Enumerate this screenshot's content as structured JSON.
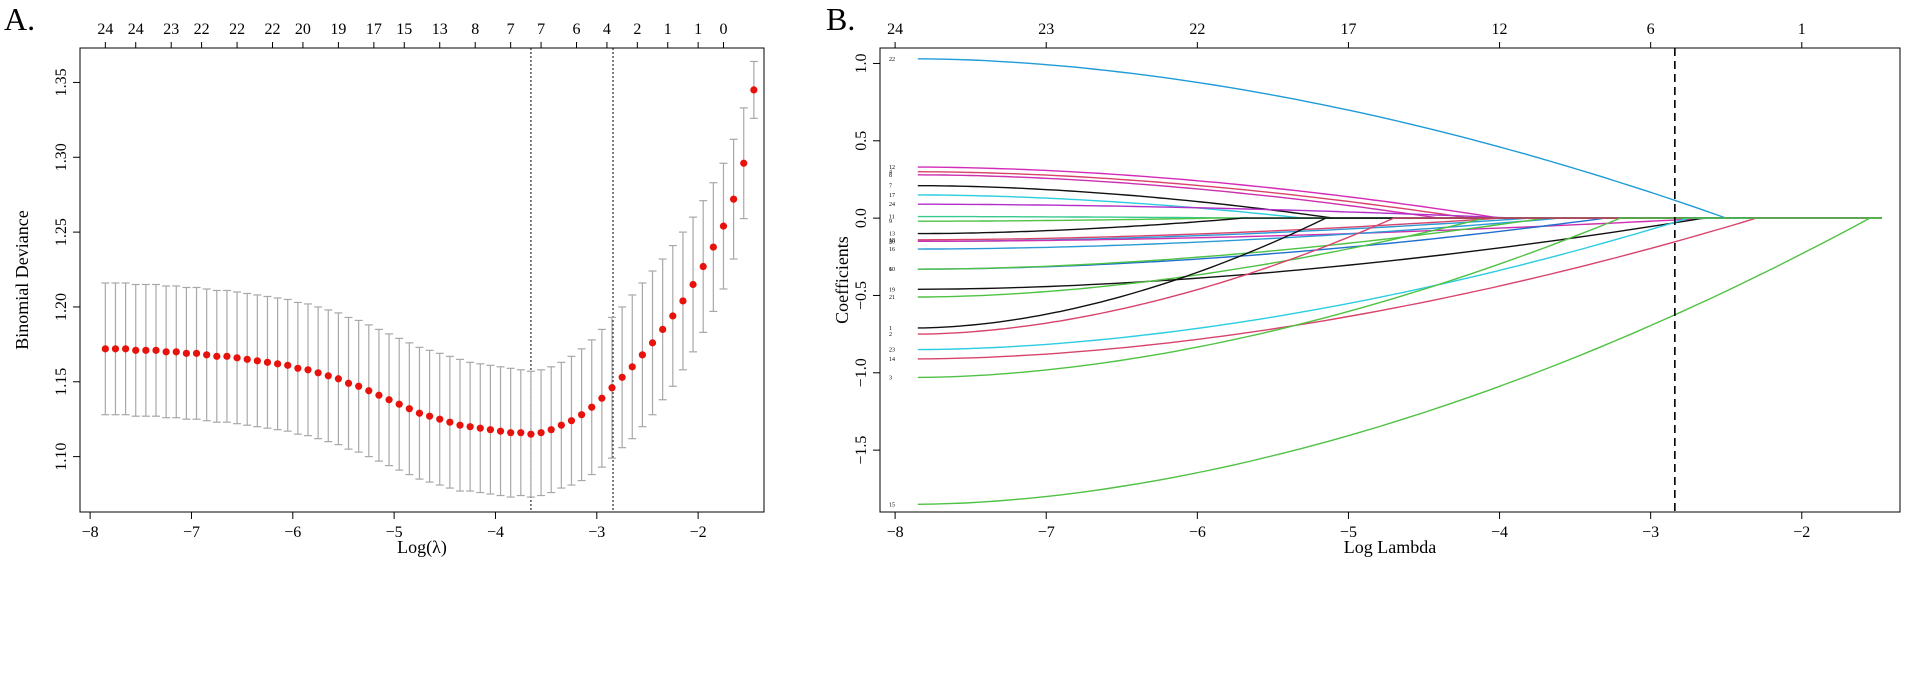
{
  "panels": {
    "a_label": "A.",
    "b_label": "B."
  },
  "chart_data": [
    {
      "type": "scatter",
      "subtype": "cross-validation curve with error bars",
      "xlabel": "Log(λ)",
      "ylabel": "Binomial Deviance",
      "xlim": [
        -8.1,
        -1.35
      ],
      "ylim": [
        1.063,
        1.373
      ],
      "x_ticks": [
        -8,
        -7,
        -6,
        -5,
        -4,
        -3,
        -2
      ],
      "x_tick_labels": [
        "−8",
        "−7",
        "−6",
        "−5",
        "−4",
        "−3",
        "−2"
      ],
      "y_ticks": [
        1.1,
        1.15,
        1.2,
        1.25,
        1.3,
        1.35
      ],
      "y_tick_labels": [
        "1.10",
        "1.15",
        "1.20",
        "1.25",
        "1.30",
        "1.35"
      ],
      "top_axis": {
        "x": [
          -7.85,
          -7.55,
          -7.2,
          -6.9,
          -6.55,
          -6.2,
          -5.9,
          -5.55,
          -5.2,
          -4.9,
          -4.55,
          -4.2,
          -3.85,
          -3.55,
          -3.2,
          -2.9,
          -2.6,
          -2.3,
          -2.0,
          -1.75,
          -1.5
        ],
        "labels": [
          "24",
          "24",
          "23",
          "22",
          "22",
          "22",
          "20",
          "19",
          "17",
          "15",
          "13",
          "8",
          "7",
          "7",
          "6",
          "4",
          "2",
          "1",
          "1",
          "0",
          ""
        ]
      },
      "vlines": [
        -3.65,
        -2.84
      ],
      "points": {
        "x": [
          -7.85,
          -7.75,
          -7.65,
          -7.55,
          -7.45,
          -7.35,
          -7.25,
          -7.15,
          -7.05,
          -6.95,
          -6.85,
          -6.75,
          -6.65,
          -6.55,
          -6.45,
          -6.35,
          -6.25,
          -6.15,
          -6.05,
          -5.95,
          -5.85,
          -5.75,
          -5.65,
          -5.55,
          -5.45,
          -5.35,
          -5.25,
          -5.15,
          -5.05,
          -4.95,
          -4.85,
          -4.75,
          -4.65,
          -4.55,
          -4.45,
          -4.35,
          -4.25,
          -4.15,
          -4.05,
          -3.95,
          -3.85,
          -3.75,
          -3.65,
          -3.55,
          -3.45,
          -3.35,
          -3.25,
          -3.15,
          -3.05,
          -2.95,
          -2.85,
          -2.75,
          -2.65,
          -2.55,
          -2.45,
          -2.35,
          -2.25,
          -2.15,
          -2.05,
          -1.95,
          -1.85,
          -1.75,
          -1.65,
          -1.55
        ],
        "mean": [
          1.172,
          1.172,
          1.172,
          1.171,
          1.171,
          1.171,
          1.17,
          1.17,
          1.169,
          1.169,
          1.168,
          1.167,
          1.167,
          1.166,
          1.165,
          1.164,
          1.163,
          1.162,
          1.161,
          1.159,
          1.158,
          1.156,
          1.154,
          1.152,
          1.149,
          1.147,
          1.144,
          1.141,
          1.138,
          1.135,
          1.132,
          1.129,
          1.127,
          1.125,
          1.123,
          1.121,
          1.12,
          1.119,
          1.118,
          1.117,
          1.116,
          1.116,
          1.115,
          1.116,
          1.118,
          1.121,
          1.124,
          1.128,
          1.133,
          1.139,
          1.146,
          1.153,
          1.16,
          1.168,
          1.176,
          1.185,
          1.194,
          1.204,
          1.215,
          1.227,
          1.24,
          1.254,
          1.272,
          1.296
        ],
        "upper": [
          1.216,
          1.216,
          1.216,
          1.215,
          1.215,
          1.215,
          1.214,
          1.214,
          1.213,
          1.213,
          1.212,
          1.211,
          1.211,
          1.21,
          1.209,
          1.208,
          1.207,
          1.206,
          1.205,
          1.203,
          1.202,
          1.2,
          1.198,
          1.196,
          1.193,
          1.191,
          1.188,
          1.185,
          1.182,
          1.179,
          1.176,
          1.173,
          1.171,
          1.169,
          1.167,
          1.165,
          1.163,
          1.162,
          1.161,
          1.16,
          1.159,
          1.158,
          1.157,
          1.158,
          1.16,
          1.163,
          1.167,
          1.172,
          1.178,
          1.185,
          1.193,
          1.2,
          1.208,
          1.216,
          1.224,
          1.232,
          1.241,
          1.25,
          1.26,
          1.271,
          1.283,
          1.296,
          1.312,
          1.333
        ],
        "lower": [
          1.128,
          1.128,
          1.128,
          1.127,
          1.127,
          1.127,
          1.126,
          1.126,
          1.125,
          1.125,
          1.124,
          1.123,
          1.123,
          1.122,
          1.121,
          1.12,
          1.119,
          1.118,
          1.117,
          1.115,
          1.114,
          1.112,
          1.11,
          1.108,
          1.105,
          1.103,
          1.1,
          1.097,
          1.094,
          1.091,
          1.088,
          1.085,
          1.083,
          1.081,
          1.079,
          1.077,
          1.077,
          1.076,
          1.075,
          1.074,
          1.073,
          1.074,
          1.073,
          1.074,
          1.076,
          1.079,
          1.081,
          1.084,
          1.088,
          1.093,
          1.099,
          1.106,
          1.112,
          1.12,
          1.128,
          1.138,
          1.147,
          1.158,
          1.17,
          1.183,
          1.197,
          1.212,
          1.232,
          1.259
        ]
      },
      "extra_points": {
        "x": [
          -1.45
        ],
        "mean": [
          1.345
        ],
        "upper": [
          1.364
        ],
        "lower": [
          1.326
        ]
      },
      "colors": {
        "points": "#e8120c",
        "bars": "#a8a8a8"
      }
    },
    {
      "type": "line",
      "subtype": "lasso coefficient paths",
      "xlabel": "Log Lambda",
      "ylabel": "Coefficients",
      "xlim": [
        -8.1,
        -1.35
      ],
      "ylim": [
        -1.9,
        1.1
      ],
      "x_ticks": [
        -8,
        -7,
        -6,
        -5,
        -4,
        -3,
        -2
      ],
      "x_tick_labels": [
        "−8",
        "−7",
        "−6",
        "−5",
        "−4",
        "−3",
        "−2"
      ],
      "y_ticks": [
        -1.5,
        -1.0,
        -0.5,
        0.0,
        0.5,
        1.0
      ],
      "y_tick_labels": [
        "−1.5",
        "−1.0",
        "−0.5",
        "0.0",
        "0.5",
        "1.0"
      ],
      "top_axis": {
        "x": [
          -8.0,
          -7.0,
          -6.0,
          -5.0,
          -4.0,
          -3.0,
          -2.0
        ],
        "labels": [
          "24",
          "23",
          "22",
          "17",
          "12",
          "6",
          "1"
        ]
      },
      "vline": -2.84,
      "series": [
        {
          "name": "22",
          "color": "#1f9bd8",
          "start": 1.03,
          "zero_at": -2.5
        },
        {
          "name": "12",
          "color": "#d42ab8",
          "start": 0.33,
          "zero_at": -4.0
        },
        {
          "name": "4",
          "color": "#d8436b",
          "start": 0.3,
          "zero_at": -4.2
        },
        {
          "name": "8",
          "color": "#cc2fb0",
          "start": 0.28,
          "zero_at": -4.4
        },
        {
          "name": "7",
          "color": "#111111",
          "start": 0.21,
          "zero_at": -5.1
        },
        {
          "name": "17",
          "color": "#2bcde0",
          "start": 0.15,
          "zero_at": -5.3
        },
        {
          "name": "24",
          "color": "#b32ec9",
          "start": 0.09,
          "zero_at": -3.9
        },
        {
          "name": "11",
          "color": "#37c98d",
          "start": 0.01,
          "zero_at": -5.6
        },
        {
          "name": "9",
          "color": "#4fc244",
          "start": -0.02,
          "zero_at": -5.9
        },
        {
          "name": "13",
          "color": "#111111",
          "start": -0.1,
          "zero_at": -5.7
        },
        {
          "name": "18",
          "color": "#d8436b",
          "start": -0.14,
          "zero_at": -4.0
        },
        {
          "name": "20",
          "color": "#2a9ad6",
          "start": -0.15,
          "zero_at": -3.8
        },
        {
          "name": "5",
          "color": "#cc2fb0",
          "start": -0.15,
          "zero_at": -2.6
        },
        {
          "name": "16",
          "color": "#2a9ad6",
          "start": -0.2,
          "zero_at": -3.6
        },
        {
          "name": "10",
          "color": "#1f6fd0",
          "start": -0.33,
          "zero_at": -3.3
        },
        {
          "name": "6",
          "color": "#4fc244",
          "start": -0.33,
          "zero_at": -3.7
        },
        {
          "name": "19",
          "color": "#111111",
          "start": -0.46,
          "zero_at": -2.65
        },
        {
          "name": "21",
          "color": "#4fc244",
          "start": -0.51,
          "zero_at": -4.1
        },
        {
          "name": "1",
          "color": "#111111",
          "start": -0.71,
          "zero_at": -5.15
        },
        {
          "name": "2",
          "color": "#d8436b",
          "start": -0.75,
          "zero_at": -4.7
        },
        {
          "name": "23",
          "color": "#2bcde0",
          "start": -0.85,
          "zero_at": -2.75
        },
        {
          "name": "14",
          "color": "#d8436b",
          "start": -0.91,
          "zero_at": -2.3
        },
        {
          "name": "3",
          "color": "#4fc244",
          "start": -1.03,
          "zero_at": -3.2
        },
        {
          "name": "15",
          "color": "#4fc244",
          "start": -1.85,
          "zero_at": -1.55
        }
      ]
    }
  ]
}
